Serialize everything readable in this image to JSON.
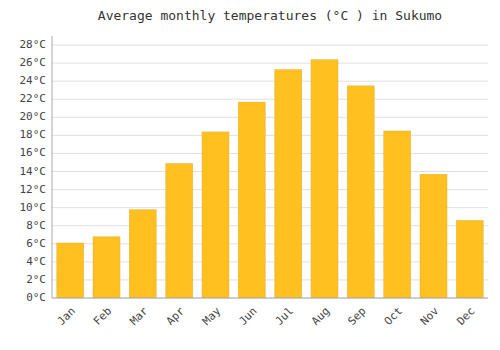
{
  "chart_data": {
    "type": "bar",
    "title": "Average monthly temperatures (°C ) in Sukumo",
    "categories": [
      "Jan",
      "Feb",
      "Mar",
      "Apr",
      "May",
      "Jun",
      "Jul",
      "Aug",
      "Sep",
      "Oct",
      "Nov",
      "Dec"
    ],
    "values": [
      6.1,
      6.8,
      9.8,
      14.9,
      18.4,
      21.7,
      25.3,
      26.4,
      23.5,
      18.5,
      13.7,
      8.6
    ],
    "color": "#FFC020",
    "ylim": [
      0,
      29
    ],
    "yticks": [
      {
        "value": 0,
        "label": "0°C"
      },
      {
        "value": 2,
        "label": "2°C"
      },
      {
        "value": 4,
        "label": "4°C"
      },
      {
        "value": 6,
        "label": "6°C"
      },
      {
        "value": 8,
        "label": "8°C"
      },
      {
        "value": 10,
        "label": "10°C"
      },
      {
        "value": 12,
        "label": "12°C"
      },
      {
        "value": 14,
        "label": "14°C"
      },
      {
        "value": 16,
        "label": "16°C"
      },
      {
        "value": 18,
        "label": "18°C"
      },
      {
        "value": 20,
        "label": "20°C"
      },
      {
        "value": 22,
        "label": "22°C"
      },
      {
        "value": 24,
        "label": "24°C"
      },
      {
        "value": 26,
        "label": "26°C"
      },
      {
        "value": 28,
        "label": "28°C"
      }
    ],
    "grid": true
  }
}
